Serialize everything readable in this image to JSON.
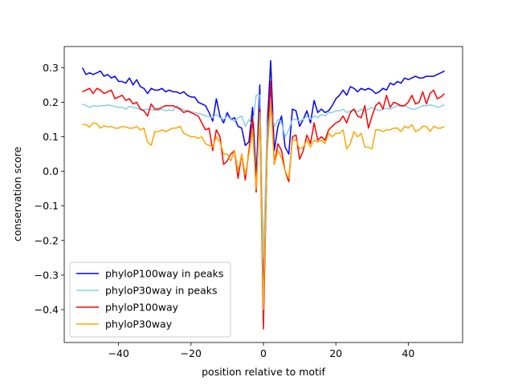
{
  "chart_data": {
    "type": "line",
    "xlabel": "position relative to motif",
    "ylabel": "conservation score",
    "xlim": [
      -55,
      55
    ],
    "ylim": [
      -0.495,
      0.361
    ],
    "xticks": [
      {
        "value": -40,
        "label": "−40"
      },
      {
        "value": -20,
        "label": "−20"
      },
      0,
      20,
      40
    ],
    "yticks": [
      {
        "value": -0.4,
        "label": "−0.4"
      },
      {
        "value": -0.3,
        "label": "−0.3"
      },
      {
        "value": -0.2,
        "label": "−0.2"
      },
      {
        "value": -0.1,
        "label": "−0.1"
      },
      {
        "value": 0,
        "label": "0.0"
      },
      0.1,
      0.2,
      0.3
    ],
    "legend": "lower left",
    "x": [
      -50,
      -49,
      -48,
      -47,
      -46,
      -45,
      -44,
      -43,
      -42,
      -41,
      -40,
      -39,
      -38,
      -37,
      -36,
      -35,
      -34,
      -33,
      -32,
      -31,
      -30,
      -29,
      -28,
      -27,
      -26,
      -25,
      -24,
      -23,
      -22,
      -21,
      -20,
      -19,
      -18,
      -17,
      -16,
      -15,
      -14,
      -13,
      -12,
      -11,
      -10,
      -9,
      -8,
      -7,
      -6,
      -5,
      -4,
      -3,
      -2,
      -1,
      0,
      1,
      2,
      3,
      4,
      5,
      6,
      7,
      8,
      9,
      10,
      11,
      12,
      13,
      14,
      15,
      16,
      17,
      18,
      19,
      20,
      21,
      22,
      23,
      24,
      25,
      26,
      27,
      28,
      29,
      30,
      31,
      32,
      33,
      34,
      35,
      36,
      37,
      38,
      39,
      40,
      41,
      42,
      43,
      44,
      45,
      46,
      47,
      48,
      49,
      50
    ],
    "series": [
      {
        "name": "phyloP100way in peaks",
        "color": "#0000ff",
        "values": [
          0.3,
          0.28,
          0.285,
          0.28,
          0.285,
          0.29,
          0.275,
          0.28,
          0.27,
          0.275,
          0.26,
          0.26,
          0.255,
          0.27,
          0.25,
          0.265,
          0.245,
          0.24,
          0.225,
          0.24,
          0.235,
          0.235,
          0.24,
          0.23,
          0.235,
          0.23,
          0.23,
          0.225,
          0.23,
          0.22,
          0.215,
          0.215,
          0.2,
          0.195,
          0.19,
          0.17,
          0.145,
          0.21,
          0.16,
          0.14,
          0.17,
          0.15,
          0.155,
          0.13,
          0.125,
          0.075,
          0.085,
          0.185,
          -0.02,
          0.25,
          -0.38,
          0.12,
          0.32,
          0.06,
          0.13,
          0.16,
          0.07,
          0.05,
          0.18,
          0.175,
          0.13,
          0.15,
          0.175,
          0.14,
          0.205,
          0.17,
          0.18,
          0.17,
          0.175,
          0.19,
          0.21,
          0.22,
          0.235,
          0.22,
          0.245,
          0.24,
          0.23,
          0.24,
          0.235,
          0.24,
          0.235,
          0.225,
          0.23,
          0.24,
          0.235,
          0.255,
          0.25,
          0.26,
          0.255,
          0.27,
          0.265,
          0.27,
          0.275,
          0.27,
          0.27,
          0.275,
          0.275,
          0.275,
          0.28,
          0.285,
          0.29
        ]
      },
      {
        "name": "phyloP30way in peaks",
        "color": "#87ceeb",
        "values": [
          0.195,
          0.19,
          0.185,
          0.19,
          0.188,
          0.19,
          0.19,
          0.192,
          0.19,
          0.188,
          0.185,
          0.185,
          0.18,
          0.188,
          0.185,
          0.183,
          0.18,
          0.178,
          0.18,
          0.178,
          0.177,
          0.176,
          0.18,
          0.175,
          0.178,
          0.175,
          0.19,
          0.183,
          0.178,
          0.175,
          0.173,
          0.17,
          0.168,
          0.165,
          0.16,
          0.158,
          0.155,
          0.165,
          0.155,
          0.15,
          0.16,
          0.15,
          0.145,
          0.155,
          0.16,
          0.13,
          0.15,
          0.13,
          0.22,
          0.22,
          -0.25,
          0.12,
          0.2,
          0.13,
          0.15,
          0.14,
          0.1,
          0.12,
          0.15,
          0.15,
          0.145,
          0.15,
          0.16,
          0.15,
          0.16,
          0.155,
          0.165,
          0.16,
          0.17,
          0.17,
          0.175,
          0.175,
          0.18,
          0.17,
          0.175,
          0.18,
          0.172,
          0.18,
          0.175,
          0.18,
          0.185,
          0.18,
          0.175,
          0.18,
          0.182,
          0.18,
          0.185,
          0.19,
          0.188,
          0.19,
          0.185,
          0.18,
          0.18,
          0.185,
          0.19,
          0.19,
          0.192,
          0.19,
          0.185,
          0.188,
          0.193
        ]
      },
      {
        "name": "phyloP100way",
        "color": "#ff0000",
        "values": [
          0.23,
          0.235,
          0.24,
          0.225,
          0.24,
          0.235,
          0.225,
          0.23,
          0.235,
          0.21,
          0.215,
          0.22,
          0.205,
          0.21,
          0.195,
          0.2,
          0.18,
          0.175,
          0.16,
          0.195,
          0.18,
          0.18,
          0.185,
          0.19,
          0.19,
          0.19,
          0.185,
          0.18,
          0.17,
          0.175,
          0.17,
          0.165,
          0.16,
          0.14,
          0.12,
          0.125,
          0.06,
          0.12,
          0.1,
          0.02,
          0.03,
          0.05,
          0.06,
          -0.02,
          0.05,
          -0.025,
          0.06,
          0.155,
          -0.06,
          0.18,
          -0.456,
          0.05,
          0.26,
          0.02,
          0.08,
          0.06,
          0.0,
          -0.03,
          0.1,
          0.105,
          0.035,
          0.06,
          0.105,
          0.08,
          0.14,
          0.09,
          0.1,
          0.09,
          0.12,
          0.13,
          0.14,
          0.145,
          0.16,
          0.14,
          0.17,
          0.18,
          0.16,
          0.155,
          0.19,
          0.125,
          0.16,
          0.19,
          0.2,
          0.18,
          0.22,
          0.185,
          0.2,
          0.195,
          0.19,
          0.19,
          0.2,
          0.22,
          0.195,
          0.2,
          0.23,
          0.195,
          0.225,
          0.235,
          0.21,
          0.215,
          0.225
        ]
      },
      {
        "name": "phyloP30way",
        "color": "#ffa500",
        "values": [
          0.135,
          0.135,
          0.128,
          0.14,
          0.138,
          0.125,
          0.132,
          0.128,
          0.13,
          0.125,
          0.125,
          0.13,
          0.128,
          0.125,
          0.125,
          0.13,
          0.12,
          0.125,
          0.085,
          0.075,
          0.115,
          0.115,
          0.12,
          0.115,
          0.12,
          0.125,
          0.125,
          0.13,
          0.11,
          0.105,
          0.1,
          0.1,
          0.095,
          0.1,
          0.08,
          0.075,
          0.07,
          0.1,
          0.085,
          0.05,
          0.05,
          0.03,
          0.06,
          0.0,
          0.05,
          -0.01,
          0.05,
          0.12,
          -0.05,
          0.17,
          -0.4,
          0.05,
          0.2,
          0.02,
          0.06,
          0.04,
          0.0,
          -0.02,
          0.09,
          0.09,
          0.065,
          0.07,
          0.09,
          0.07,
          0.09,
          0.085,
          0.09,
          0.08,
          0.11,
          0.1,
          0.11,
          0.11,
          0.12,
          0.065,
          0.08,
          0.115,
          0.1,
          0.11,
          0.07,
          0.07,
          0.065,
          0.12,
          0.12,
          0.115,
          0.12,
          0.12,
          0.125,
          0.125,
          0.115,
          0.13,
          0.125,
          0.135,
          0.115,
          0.12,
          0.13,
          0.13,
          0.115,
          0.13,
          0.125,
          0.125,
          0.13
        ]
      }
    ]
  }
}
